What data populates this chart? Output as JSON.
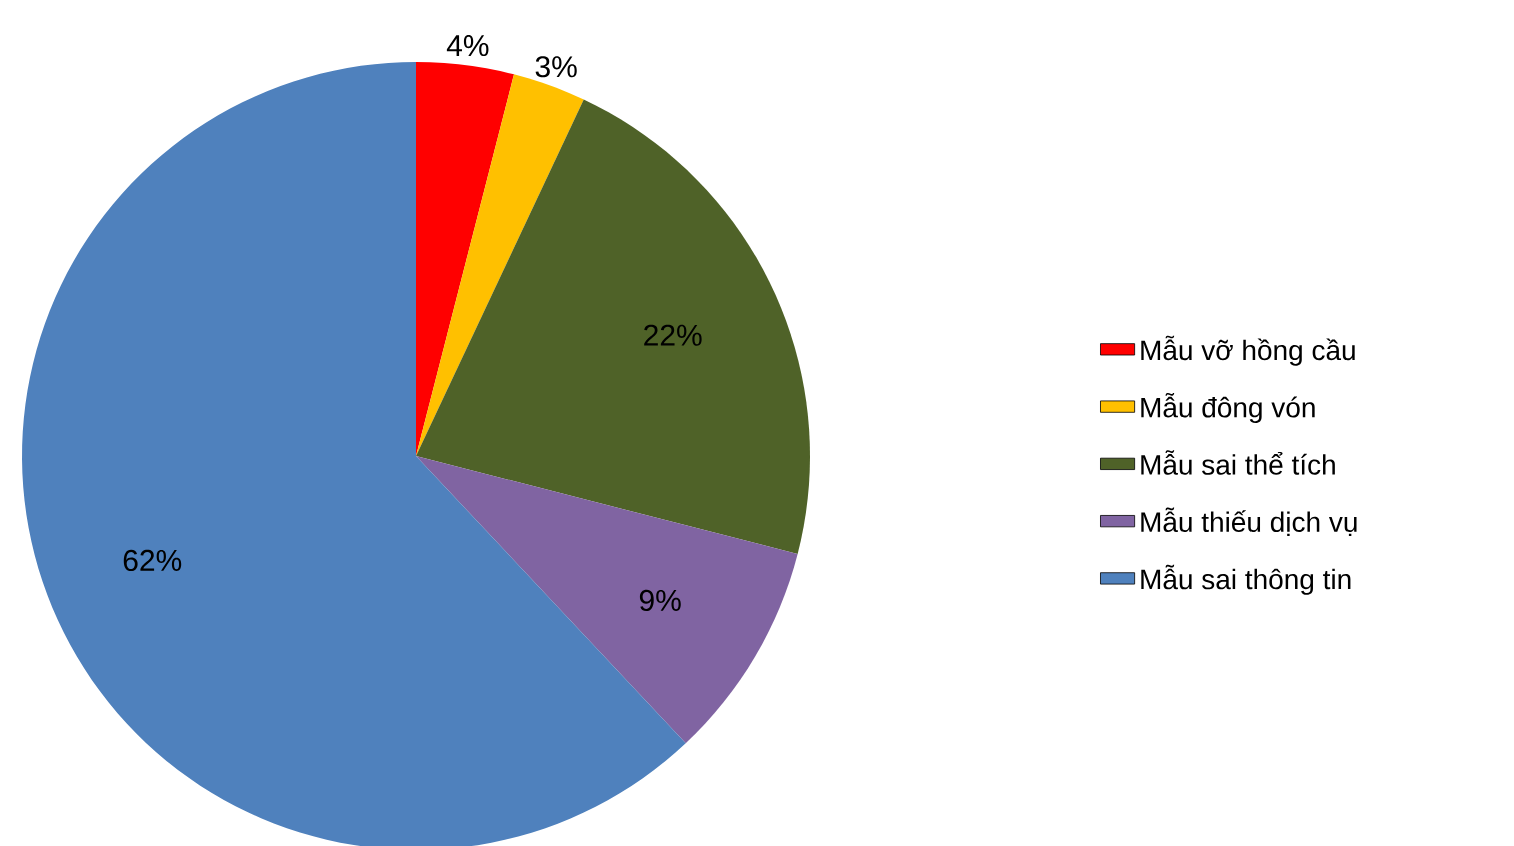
{
  "chart_data": {
    "type": "pie",
    "categories": [
      "Mẫu vỡ hồng cầu",
      "Mẫu đông vón",
      "Mẫu sai thể tích",
      "Mẫu thiếu dịch vụ",
      "Mẫu sai thông tin"
    ],
    "values": [
      4,
      3,
      22,
      9,
      62
    ],
    "value_labels": [
      "4%",
      "3%",
      "22%",
      "9%",
      "62%"
    ],
    "colors": [
      "#ff0000",
      "#ffc000",
      "#4f6228",
      "#8064a2",
      "#4f81bd"
    ],
    "legend": "right"
  }
}
